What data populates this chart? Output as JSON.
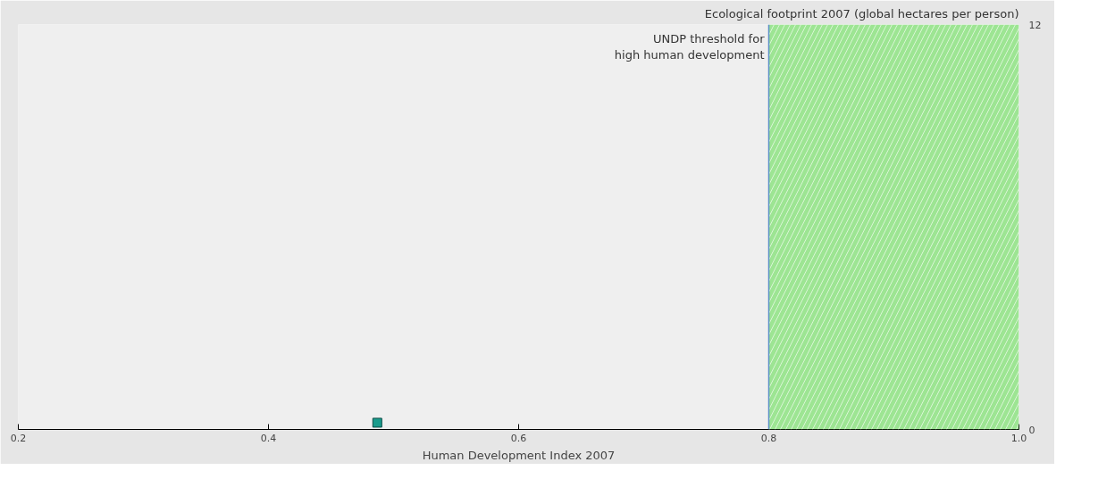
{
  "chart_data": {
    "type": "scatter",
    "title": "Ecological footprint 2007 (global hectares per person)",
    "xlabel": "Human Development Index 2007",
    "series": [
      {
        "color": "#1a9c8c",
        "x": [
          0.487
        ],
        "values": [
          0.2
        ]
      }
    ],
    "marker": "square",
    "xlim": [
      0.2,
      1.0
    ],
    "ylim": [
      0,
      12
    ],
    "xticks": [
      0.2,
      0.4,
      0.6,
      0.8,
      {
        "value": 1.0,
        "label": "1.0"
      }
    ],
    "yticks": [
      0,
      12
    ],
    "ref_lines": [
      {
        "axis": "x",
        "value": 0.8,
        "label": "UNDP threshold for\nhigh human development",
        "color": "#5b8fc7"
      }
    ],
    "bands": [
      {
        "axis": "x",
        "from": 0.8,
        "to": 1.0,
        "color": "#66dd55"
      }
    ],
    "grid": false
  }
}
